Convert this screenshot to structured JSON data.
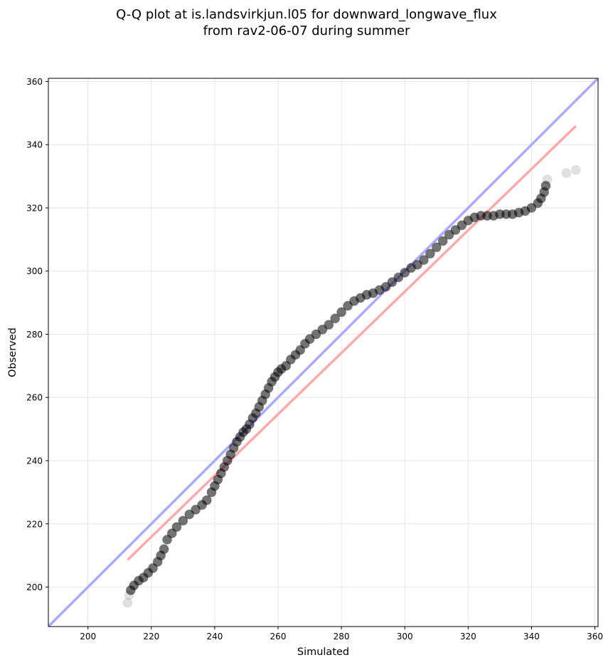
{
  "chart_data": {
    "type": "scatter",
    "title": "Q-Q plot at is.landsvirkjun.l05 for downward_longwave_flux",
    "subtitle": "from rav2-06-07 during summer",
    "xlabel": "Simulated",
    "ylabel": "Observed",
    "xlim": [
      187.5,
      361
    ],
    "ylim": [
      187.5,
      361
    ],
    "xticks": [
      200,
      220,
      240,
      260,
      280,
      300,
      320,
      340,
      360
    ],
    "yticks": [
      200,
      220,
      240,
      260,
      280,
      300,
      320,
      340,
      360
    ],
    "grid": true,
    "quantiles": {
      "color": "#000000",
      "x": [
        212.5,
        213.0,
        213.5,
        214.5,
        216.0,
        217.5,
        219.0,
        220.5,
        222.0,
        223.0,
        224.0,
        225.0,
        226.5,
        228.0,
        230.0,
        232.0,
        234.0,
        236.0,
        237.5,
        239.0,
        240.0,
        241.0,
        242.0,
        243.0,
        244.0,
        245.0,
        246.0,
        247.0,
        248.0,
        249.0,
        250.0,
        251.0,
        252.0,
        253.0,
        254.0,
        255.0,
        256.0,
        257.0,
        258.0,
        259.0,
        260.0,
        261.0,
        262.5,
        264.0,
        265.5,
        267.0,
        268.5,
        270.0,
        272.0,
        274.0,
        276.0,
        278.0,
        280.0,
        282.0,
        284.0,
        286.0,
        288.0,
        290.0,
        292.0,
        294.0,
        296.0,
        298.0,
        300.0,
        302.0,
        304.0,
        306.0,
        308.0,
        310.0,
        312.0,
        314.0,
        316.0,
        318.0,
        320.0,
        322.0,
        324.0,
        326.0,
        328.0,
        330.0,
        332.0,
        334.0,
        336.0,
        338.0,
        340.0,
        342.0,
        343.0,
        344.0,
        344.5,
        345.0,
        351.0,
        354.0
      ],
      "y": [
        195.0,
        197.5,
        199.0,
        200.5,
        202.0,
        203.0,
        204.5,
        206.0,
        208.0,
        210.0,
        212.0,
        215.0,
        217.0,
        219.0,
        221.0,
        223.0,
        224.5,
        226.0,
        227.5,
        230.0,
        232.0,
        234.0,
        236.0,
        238.0,
        240.0,
        242.0,
        244.0,
        246.0,
        247.5,
        249.0,
        250.0,
        251.5,
        253.5,
        255.0,
        257.0,
        259.0,
        261.0,
        263.0,
        265.0,
        266.5,
        268.0,
        269.0,
        270.0,
        272.0,
        273.5,
        275.0,
        277.0,
        278.5,
        280.0,
        281.5,
        283.0,
        285.0,
        287.0,
        289.0,
        290.5,
        291.5,
        292.5,
        293.0,
        294.0,
        295.0,
        296.5,
        298.0,
        299.5,
        301.0,
        302.0,
        303.5,
        305.5,
        307.5,
        309.5,
        311.5,
        313.0,
        314.5,
        316.0,
        317.0,
        317.5,
        317.5,
        317.5,
        318.0,
        318.0,
        318.0,
        318.5,
        319.0,
        320.0,
        321.5,
        323.0,
        325.0,
        327.0,
        329.0,
        331.0,
        332.0
      ]
    },
    "reference_line": {
      "color": "#aaaaff",
      "x": [
        187.5,
        361
      ],
      "y": [
        187.5,
        361
      ]
    },
    "fit_line": {
      "color": "#ffaaaa",
      "x": [
        212.5,
        354.0
      ],
      "y": [
        208.6,
        345.9
      ]
    }
  }
}
